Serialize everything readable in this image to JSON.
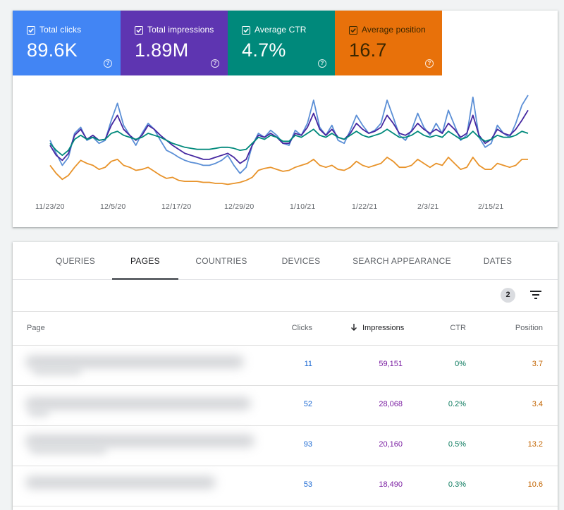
{
  "metrics": [
    {
      "id": "clicks",
      "label": "Total clicks",
      "value": "89.6K",
      "color": "#4285f4"
    },
    {
      "id": "impressions",
      "label": "Total impressions",
      "value": "1.89M",
      "color": "#5e35b1"
    },
    {
      "id": "ctr",
      "label": "Average CTR",
      "value": "4.7%",
      "color": "#00897b"
    },
    {
      "id": "position",
      "label": "Average position",
      "value": "16.7",
      "color": "#e8710a"
    }
  ],
  "chart_data": {
    "type": "line",
    "x_ticks": [
      "11/23/20",
      "12/5/20",
      "12/17/20",
      "12/29/20",
      "1/10/21",
      "1/22/21",
      "2/3/21",
      "2/15/21"
    ],
    "x_range": [
      "2020-11-23",
      "2021-02-23"
    ],
    "series": [
      {
        "name": "Total clicks",
        "color": "#5b8fd6",
        "values": [
          0.55,
          0.42,
          0.3,
          0.38,
          0.62,
          0.68,
          0.55,
          0.58,
          0.52,
          0.55,
          0.75,
          0.92,
          0.7,
          0.6,
          0.5,
          0.62,
          0.72,
          0.66,
          0.55,
          0.45,
          0.42,
          0.38,
          0.35,
          0.33,
          0.32,
          0.3,
          0.3,
          0.32,
          0.35,
          0.4,
          0.3,
          0.22,
          0.28,
          0.5,
          0.62,
          0.58,
          0.65,
          0.6,
          0.52,
          0.5,
          0.65,
          0.6,
          0.72,
          0.95,
          0.68,
          0.6,
          0.7,
          0.55,
          0.52,
          0.65,
          0.8,
          0.7,
          0.62,
          0.65,
          0.72,
          0.95,
          0.78,
          0.6,
          0.55,
          0.65,
          0.82,
          0.68,
          0.6,
          0.72,
          0.62,
          0.85,
          0.7,
          0.55,
          0.6,
          0.98,
          0.58,
          0.48,
          0.52,
          0.7,
          0.62,
          0.58,
          0.72,
          0.9,
          1.0
        ]
      },
      {
        "name": "Total impressions",
        "color": "#4527a0",
        "values": [
          0.5,
          0.4,
          0.35,
          0.42,
          0.6,
          0.66,
          0.56,
          0.6,
          0.55,
          0.56,
          0.7,
          0.8,
          0.66,
          0.6,
          0.55,
          0.6,
          0.7,
          0.66,
          0.6,
          0.55,
          0.5,
          0.46,
          0.42,
          0.4,
          0.38,
          0.36,
          0.36,
          0.38,
          0.4,
          0.42,
          0.38,
          0.32,
          0.36,
          0.5,
          0.6,
          0.58,
          0.62,
          0.58,
          0.52,
          0.52,
          0.62,
          0.6,
          0.68,
          0.82,
          0.66,
          0.6,
          0.66,
          0.58,
          0.56,
          0.62,
          0.72,
          0.66,
          0.62,
          0.64,
          0.68,
          0.8,
          0.72,
          0.62,
          0.6,
          0.64,
          0.72,
          0.66,
          0.62,
          0.66,
          0.62,
          0.72,
          0.66,
          0.58,
          0.62,
          0.8,
          0.6,
          0.52,
          0.56,
          0.66,
          0.62,
          0.6,
          0.66,
          0.75,
          0.85
        ]
      },
      {
        "name": "Average CTR",
        "color": "#00897b",
        "values": [
          0.52,
          0.45,
          0.4,
          0.45,
          0.56,
          0.6,
          0.56,
          0.58,
          0.55,
          0.56,
          0.62,
          0.64,
          0.6,
          0.58,
          0.56,
          0.58,
          0.62,
          0.6,
          0.58,
          0.55,
          0.52,
          0.5,
          0.48,
          0.47,
          0.46,
          0.46,
          0.46,
          0.47,
          0.48,
          0.48,
          0.47,
          0.45,
          0.46,
          0.52,
          0.58,
          0.56,
          0.6,
          0.58,
          0.54,
          0.54,
          0.6,
          0.58,
          0.62,
          0.66,
          0.6,
          0.58,
          0.62,
          0.58,
          0.56,
          0.6,
          0.64,
          0.6,
          0.58,
          0.6,
          0.62,
          0.66,
          0.62,
          0.58,
          0.58,
          0.6,
          0.64,
          0.6,
          0.58,
          0.6,
          0.58,
          0.64,
          0.6,
          0.56,
          0.58,
          0.64,
          0.58,
          0.54,
          0.56,
          0.6,
          0.58,
          0.58,
          0.6,
          0.64,
          0.62
        ]
      },
      {
        "name": "Average position",
        "color": "#e8932a",
        "values": [
          0.3,
          0.22,
          0.16,
          0.2,
          0.28,
          0.35,
          0.32,
          0.3,
          0.26,
          0.28,
          0.34,
          0.36,
          0.3,
          0.28,
          0.25,
          0.26,
          0.28,
          0.24,
          0.2,
          0.17,
          0.18,
          0.15,
          0.14,
          0.14,
          0.14,
          0.13,
          0.13,
          0.12,
          0.12,
          0.11,
          0.12,
          0.13,
          0.15,
          0.18,
          0.25,
          0.27,
          0.28,
          0.26,
          0.24,
          0.25,
          0.28,
          0.3,
          0.32,
          0.36,
          0.3,
          0.28,
          0.3,
          0.26,
          0.25,
          0.28,
          0.34,
          0.3,
          0.28,
          0.3,
          0.32,
          0.38,
          0.34,
          0.28,
          0.28,
          0.3,
          0.36,
          0.32,
          0.28,
          0.32,
          0.3,
          0.38,
          0.32,
          0.26,
          0.28,
          0.38,
          0.3,
          0.26,
          0.26,
          0.32,
          0.3,
          0.28,
          0.3,
          0.36,
          0.36
        ]
      }
    ]
  },
  "tabs": [
    {
      "label": "QUERIES",
      "active": false
    },
    {
      "label": "PAGES",
      "active": true
    },
    {
      "label": "COUNTRIES",
      "active": false
    },
    {
      "label": "DEVICES",
      "active": false
    },
    {
      "label": "SEARCH APPEARANCE",
      "active": false
    },
    {
      "label": "DATES",
      "active": false
    }
  ],
  "filter": {
    "count": "2",
    "icon": "filter-list-icon"
  },
  "table": {
    "headers": {
      "page": "Page",
      "clicks": "Clicks",
      "impressions": "Impressions",
      "ctr": "CTR",
      "position": "Position"
    },
    "sort_icon": "arrow-down-icon",
    "rows": [
      {
        "clicks": "11",
        "impressions": "59,151",
        "ctr": "0%",
        "position": "3.7"
      },
      {
        "clicks": "52",
        "impressions": "28,068",
        "ctr": "0.2%",
        "position": "3.4"
      },
      {
        "clicks": "93",
        "impressions": "20,160",
        "ctr": "0.5%",
        "position": "13.2"
      },
      {
        "clicks": "53",
        "impressions": "18,490",
        "ctr": "0.3%",
        "position": "10.6"
      }
    ]
  },
  "colors": {
    "clicks_text": "#1967d2",
    "impr_text": "#7b1fa2",
    "ctr_text": "#0d7b5f",
    "pos_text": "#c26401"
  }
}
